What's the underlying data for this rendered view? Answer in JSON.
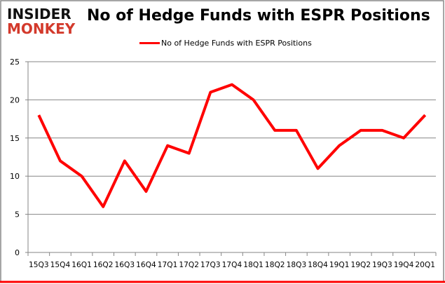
{
  "logo": {
    "line1": "INSIDER",
    "line2": "MONKEY"
  },
  "chart_data": {
    "type": "line",
    "title": "No of Hedge Funds with ESPR Positions",
    "categories": [
      "15Q3",
      "15Q4",
      "16Q1",
      "16Q2",
      "16Q3",
      "16Q4",
      "17Q1",
      "17Q2",
      "17Q3",
      "17Q4",
      "18Q1",
      "18Q2",
      "18Q3",
      "18Q4",
      "19Q1",
      "19Q2",
      "19Q3",
      "19Q4",
      "20Q1"
    ],
    "series": [
      {
        "name": "No of Hedge Funds with ESPR Positions",
        "color": "#ff0000",
        "values": [
          18,
          12,
          10,
          6,
          12,
          8,
          14,
          13,
          21,
          22,
          20,
          16,
          16,
          11,
          14,
          16,
          16,
          15,
          18
        ]
      }
    ],
    "yticks": [
      0,
      5,
      10,
      15,
      20,
      25
    ],
    "ylim": [
      0,
      25
    ],
    "grid": true,
    "legend": "top-center",
    "xlabel": "",
    "ylabel": ""
  }
}
